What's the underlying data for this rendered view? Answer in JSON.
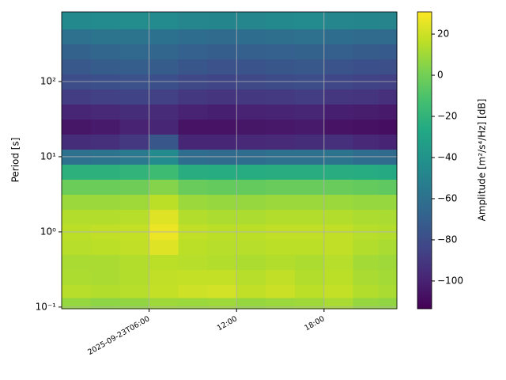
{
  "chart_data": {
    "type": "heatmap",
    "ylabel": "Period [s]",
    "colorbar_label": "Amplitude [m²/s⁴/Hz] [dB]",
    "colormap": "viridis",
    "grid": true,
    "y_scale": "log",
    "xlim": [
      0,
      23
    ],
    "xticks": [
      {
        "value": 6,
        "label": "2025-09-23T06:00"
      },
      {
        "value": 12,
        "label": "12:00"
      },
      {
        "value": 18,
        "label": "18:00"
      }
    ],
    "ylim": [
      0.095,
      844
    ],
    "yticks": [
      {
        "value": 0.1,
        "label": "10⁻¹"
      },
      {
        "value": 1,
        "label": "10⁰"
      },
      {
        "value": 10,
        "label": "10¹"
      },
      {
        "value": 100,
        "label": "10²"
      }
    ],
    "clim": [
      -113.5,
      30.8
    ],
    "cticks": [
      20,
      0,
      {
        "value": -20,
        "label": "−20"
      },
      {
        "value": -40,
        "label": "−40"
      },
      {
        "value": -60,
        "label": "−60"
      },
      {
        "value": -80,
        "label": "−80"
      },
      {
        "value": -100,
        "label": "−100"
      }
    ],
    "x": [
      1,
      3,
      5,
      7,
      9,
      11,
      13,
      15,
      17,
      19,
      21,
      22.5
    ],
    "y": [
      0.11,
      0.16,
      0.25,
      0.4,
      0.63,
      1,
      1.6,
      2.5,
      4,
      6.3,
      10,
      16,
      25,
      40,
      63,
      100,
      160,
      250,
      400,
      630
    ],
    "values": [
      [
        8,
        6,
        7,
        10,
        9,
        10,
        8,
        9,
        10,
        12,
        8,
        7
      ],
      [
        15,
        14,
        15,
        18,
        20,
        21,
        17,
        19,
        16,
        18,
        14,
        12
      ],
      [
        13,
        12,
        14,
        17,
        18,
        18,
        15,
        17,
        14,
        16,
        12,
        11
      ],
      [
        12,
        12,
        14,
        16,
        15,
        14,
        13,
        14,
        13,
        15,
        11,
        10
      ],
      [
        15,
        16,
        17,
        24,
        16,
        15,
        15,
        16,
        16,
        17,
        14,
        12
      ],
      [
        16,
        17,
        18,
        27,
        17,
        16,
        16,
        17,
        17,
        17,
        15,
        14
      ],
      [
        14,
        14,
        15,
        24,
        14,
        13,
        13,
        14,
        14,
        14,
        13,
        12
      ],
      [
        9,
        9,
        10,
        16,
        9,
        8,
        8,
        9,
        9,
        9,
        8,
        8
      ],
      [
        -2,
        -2,
        -1,
        4,
        -3,
        -4,
        -4,
        -3,
        -3,
        -3,
        -4,
        -5
      ],
      [
        -22,
        -22,
        -20,
        -15,
        -24,
        -25,
        -25,
        -24,
        -24,
        -24,
        -25,
        -26
      ],
      [
        -60,
        -58,
        -55,
        -45,
        -62,
        -63,
        -62,
        -60,
        -60,
        -58,
        -62,
        -64
      ],
      [
        -95,
        -94,
        -90,
        -75,
        -98,
        -98,
        -97,
        -96,
        -95,
        -94,
        -97,
        -99
      ],
      [
        -105,
        -103,
        -100,
        -98,
        -106,
        -106,
        -105,
        -104,
        -103,
        -106,
        -107,
        -108
      ],
      [
        -98,
        -97,
        -95,
        -96,
        -100,
        -101,
        -100,
        -99,
        -98,
        -101,
        -102,
        -103
      ],
      [
        -88,
        -86,
        -85,
        -86,
        -90,
        -92,
        -90,
        -89,
        -88,
        -91,
        -92,
        -94
      ],
      [
        -80,
        -78,
        -77,
        -78,
        -82,
        -84,
        -82,
        -81,
        -80,
        -83,
        -85,
        -86
      ],
      [
        -74,
        -72,
        -71,
        -72,
        -75,
        -77,
        -76,
        -75,
        -74,
        -76,
        -78,
        -79
      ],
      [
        -68,
        -66,
        -65,
        -66,
        -69,
        -71,
        -70,
        -69,
        -68,
        -70,
        -72,
        -73
      ],
      [
        -60,
        -58,
        -58,
        -59,
        -62,
        -63,
        -62,
        -61,
        -60,
        -62,
        -63,
        -64
      ],
      [
        -46,
        -45,
        -44,
        -45,
        -47,
        -48,
        -47,
        -46,
        -45,
        -47,
        -48,
        -49
      ]
    ]
  }
}
